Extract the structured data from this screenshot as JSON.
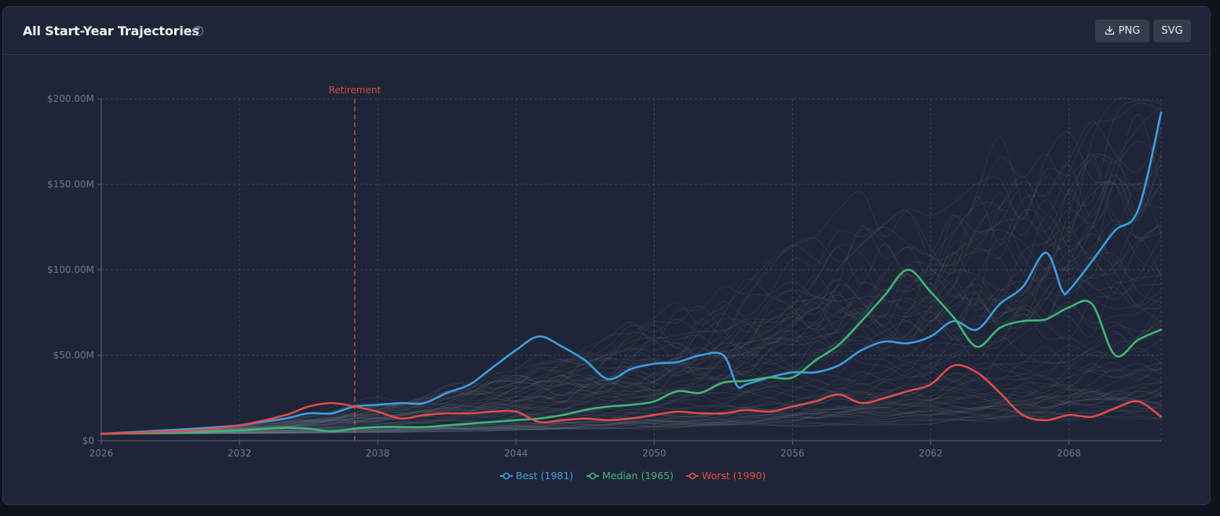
{
  "header": {
    "title": "All Start-Year Trajectories",
    "help_icon": "question-circle-icon",
    "png_label": "PNG",
    "svg_label": "SVG",
    "download_icon": "download-icon"
  },
  "chart_data": {
    "type": "line",
    "title": "All Start-Year Trajectories",
    "xlim": [
      2026,
      2072
    ],
    "ylim": [
      0,
      200
    ],
    "y_unit": "$M",
    "grid": true,
    "x_ticks": [
      2026,
      2032,
      2038,
      2044,
      2050,
      2056,
      2062,
      2068
    ],
    "x_tick_labels": [
      "2026",
      "2032",
      "2038",
      "2044",
      "2050",
      "2056",
      "2062",
      "2068"
    ],
    "y_ticks": [
      0,
      50,
      100,
      150,
      200
    ],
    "y_tick_labels": [
      "$0",
      "$50.00M",
      "$100.00M",
      "$150.00M",
      "$200.00M"
    ],
    "annotation": {
      "label": "Retirement",
      "x": 2037,
      "color": "#d44a4a"
    },
    "legend_position": "bottom-center",
    "series": [
      {
        "name": "Best (1981)",
        "color": "#3e9de0",
        "x": [
          2026,
          2028,
          2030,
          2032,
          2033,
          2034,
          2035,
          2036,
          2037,
          2038,
          2039,
          2040,
          2041,
          2042,
          2043,
          2044,
          2045,
          2046,
          2047,
          2048,
          2049,
          2050,
          2051,
          2052,
          2053,
          2053.6,
          2054,
          2055,
          2056,
          2057,
          2058,
          2059,
          2060,
          2061,
          2062,
          2063,
          2064,
          2065,
          2066,
          2067,
          2067.7,
          2068,
          2069,
          2070,
          2071,
          2072
        ],
        "y": [
          4,
          5.5,
          7,
          9,
          11,
          13,
          16,
          16,
          20,
          21,
          22,
          22,
          28,
          33,
          43,
          53,
          61,
          55,
          47,
          36,
          42,
          45,
          46,
          50,
          50,
          32,
          33,
          37,
          40,
          40,
          44,
          53,
          58,
          57,
          61,
          70,
          65,
          80,
          90,
          110,
          88,
          88,
          105,
          123,
          135,
          192
        ]
      },
      {
        "name": "Median (1965)",
        "color": "#3fb677",
        "x": [
          2026,
          2028,
          2030,
          2032,
          2034,
          2035,
          2036,
          2037,
          2038,
          2039,
          2040,
          2041,
          2042,
          2043,
          2044,
          2045,
          2046,
          2047,
          2048,
          2049,
          2050,
          2051,
          2052,
          2053,
          2054,
          2055,
          2056,
          2057,
          2058,
          2059,
          2060,
          2061,
          2062,
          2063,
          2064,
          2065,
          2066,
          2067,
          2068,
          2069,
          2070,
          2071,
          2072
        ],
        "y": [
          4,
          4.5,
          5,
          6,
          7.5,
          7,
          5.5,
          7,
          8,
          8,
          8,
          9,
          10,
          11,
          12,
          13,
          15,
          18,
          20,
          21,
          23,
          29,
          28,
          34,
          35,
          37,
          37,
          47,
          56,
          70,
          85,
          100,
          87,
          72,
          55,
          66,
          70,
          71,
          78,
          80,
          50,
          59,
          65
        ]
      },
      {
        "name": "Worst (1990)",
        "color": "#e04b4b",
        "x": [
          2026,
          2028,
          2030,
          2032,
          2034,
          2035,
          2036,
          2037,
          2038,
          2039,
          2040,
          2041,
          2042,
          2043,
          2044,
          2045,
          2046,
          2047,
          2048,
          2049,
          2050,
          2051,
          2052,
          2053,
          2054,
          2055,
          2056,
          2057,
          2058,
          2059,
          2060,
          2061,
          2062,
          2063,
          2064,
          2065,
          2066,
          2067,
          2068,
          2069,
          2070,
          2071,
          2072
        ],
        "y": [
          4,
          5,
          6,
          9,
          15,
          20,
          22,
          20,
          17,
          13,
          15,
          16,
          16,
          17,
          17,
          11,
          12,
          13,
          12,
          13,
          15,
          17,
          16,
          16,
          18,
          17,
          20,
          23,
          27,
          22,
          25,
          29,
          33,
          44,
          40,
          28,
          15,
          12,
          15,
          14,
          19,
          23,
          14
        ]
      }
    ]
  }
}
